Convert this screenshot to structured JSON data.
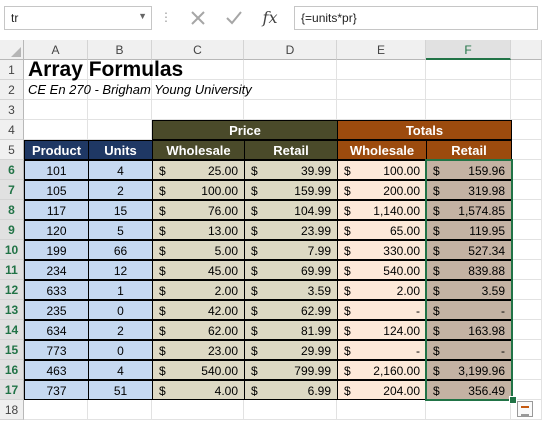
{
  "formula_bar": {
    "name_box": "tr",
    "cancel_icon": "x-icon",
    "enter_icon": "check-icon",
    "fx_label": "fx",
    "formula": "{=units*pr}"
  },
  "columns": [
    "A",
    "B",
    "C",
    "D",
    "E",
    "F"
  ],
  "rows": [
    "1",
    "2",
    "3",
    "4",
    "5",
    "6",
    "7",
    "8",
    "9",
    "10",
    "11",
    "12",
    "13",
    "14",
    "15",
    "16",
    "17",
    "18"
  ],
  "sheet": {
    "title": "Array Formulas",
    "subtitle": "CE En 270 - Brigham Young University",
    "group_price": "Price",
    "group_totals": "Totals",
    "header_product": "Product",
    "header_units": "Units",
    "header_wholesale": "Wholesale",
    "header_retail": "Retail",
    "header_totals_wholesale": "Wholesale",
    "header_totals_retail": "Retail",
    "currency": "$",
    "data": [
      {
        "product": "101",
        "units": "4",
        "wholesale": "25.00",
        "retail": "39.99",
        "tot_wholesale": "100.00",
        "tot_retail": "159.96"
      },
      {
        "product": "105",
        "units": "2",
        "wholesale": "100.00",
        "retail": "159.99",
        "tot_wholesale": "200.00",
        "tot_retail": "319.98"
      },
      {
        "product": "117",
        "units": "15",
        "wholesale": "76.00",
        "retail": "104.99",
        "tot_wholesale": "1,140.00",
        "tot_retail": "1,574.85"
      },
      {
        "product": "120",
        "units": "5",
        "wholesale": "13.00",
        "retail": "23.99",
        "tot_wholesale": "65.00",
        "tot_retail": "119.95"
      },
      {
        "product": "199",
        "units": "66",
        "wholesale": "5.00",
        "retail": "7.99",
        "tot_wholesale": "330.00",
        "tot_retail": "527.34"
      },
      {
        "product": "234",
        "units": "12",
        "wholesale": "45.00",
        "retail": "69.99",
        "tot_wholesale": "540.00",
        "tot_retail": "839.88"
      },
      {
        "product": "633",
        "units": "1",
        "wholesale": "2.00",
        "retail": "3.59",
        "tot_wholesale": "2.00",
        "tot_retail": "3.59"
      },
      {
        "product": "235",
        "units": "0",
        "wholesale": "42.00",
        "retail": "62.99",
        "tot_wholesale": "-",
        "tot_retail": "-"
      },
      {
        "product": "634",
        "units": "2",
        "wholesale": "62.00",
        "retail": "81.99",
        "tot_wholesale": "124.00",
        "tot_retail": "163.98"
      },
      {
        "product": "773",
        "units": "0",
        "wholesale": "23.00",
        "retail": "29.99",
        "tot_wholesale": "-",
        "tot_retail": "-"
      },
      {
        "product": "463",
        "units": "4",
        "wholesale": "540.00",
        "retail": "799.99",
        "tot_wholesale": "2,160.00",
        "tot_retail": "3,199.96"
      },
      {
        "product": "737",
        "units": "51",
        "wholesale": "4.00",
        "retail": "6.99",
        "tot_wholesale": "204.00",
        "tot_retail": "356.49"
      }
    ]
  },
  "colors": {
    "price_header": "#4a4a2a",
    "totals_header": "#9c4b0e",
    "navy_header": "#1f3864",
    "selection": "#217346"
  }
}
